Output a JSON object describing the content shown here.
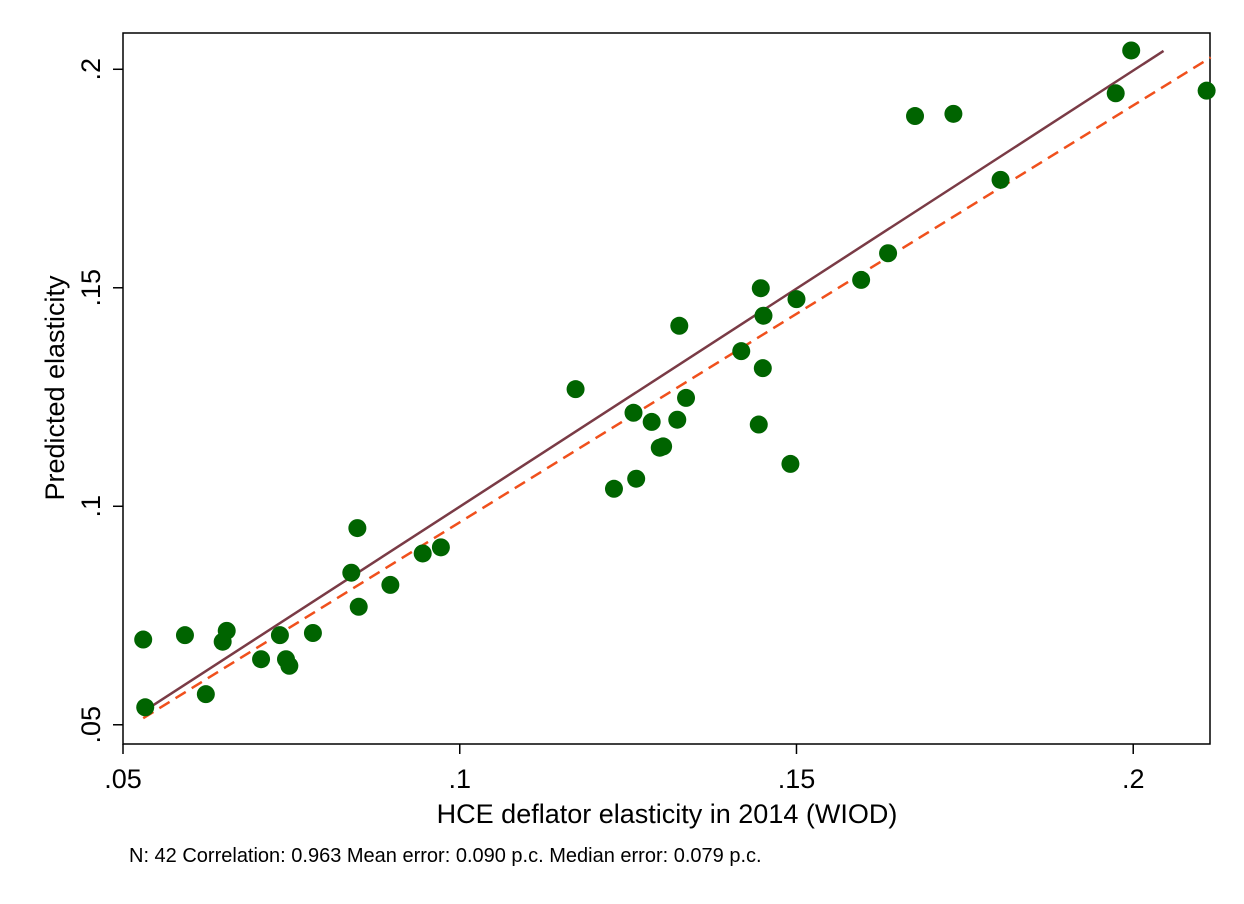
{
  "chart_data": {
    "type": "scatter",
    "title": "",
    "xlabel": "HCE deflator elasticity in 2014 (WIOD)",
    "ylabel": "Predicted elasticity",
    "xlim": [
      0.05,
      0.2114
    ],
    "ylim": [
      0.0456,
      0.2083
    ],
    "x_ticks": [
      0.05,
      0.1,
      0.15,
      0.2
    ],
    "x_tick_labels": [
      ".05",
      ".1",
      ".15",
      ".2"
    ],
    "y_ticks": [
      0.05,
      0.1,
      0.15,
      0.2
    ],
    "y_tick_labels": [
      ".05",
      ".1",
      ".15",
      ".2"
    ],
    "grid": false,
    "legend": "none",
    "note": "N: 42 Correlation: 0.963 Mean error: 0.090 p.c.  Median error: 0.079 p.c.",
    "colors": {
      "points": "#006400",
      "fit_line": "#7a3b46",
      "reference_line": "#f0501c"
    },
    "lines": [
      {
        "style": "solid",
        "x": [
          0.053,
          0.2045
        ],
        "y": [
          0.053,
          0.2042
        ]
      },
      {
        "style": "dashed",
        "x": [
          0.053,
          0.2115
        ],
        "y": [
          0.0515,
          0.2027
        ]
      }
    ],
    "series": [
      {
        "x": [
          0.053,
          0.0533,
          0.0592,
          0.0623,
          0.0648,
          0.0654,
          0.0705,
          0.0733,
          0.0742,
          0.0747,
          0.0782,
          0.0839,
          0.0848,
          0.085,
          0.0897,
          0.0945,
          0.0972,
          0.1172,
          0.1229,
          0.1258,
          0.1262,
          0.1285,
          0.1297,
          0.1302,
          0.1323,
          0.1326,
          0.1336,
          0.1418,
          0.1444,
          0.1447,
          0.145,
          0.1451,
          0.1491,
          0.15,
          0.1596,
          0.1636,
          0.1676,
          0.1733,
          0.1803,
          0.1974,
          0.1997,
          0.2109
        ],
        "y": [
          0.0695,
          0.054,
          0.0705,
          0.057,
          0.069,
          0.0715,
          0.065,
          0.0705,
          0.065,
          0.0635,
          0.071,
          0.0848,
          0.095,
          0.077,
          0.082,
          0.0892,
          0.0906,
          0.1268,
          0.104,
          0.1214,
          0.1063,
          0.1193,
          0.1134,
          0.1137,
          0.1198,
          0.1413,
          0.1248,
          0.1355,
          0.1187,
          0.1499,
          0.1316,
          0.1436,
          0.1097,
          0.1474,
          0.1518,
          0.1579,
          0.1893,
          0.1898,
          0.1747,
          0.1945,
          0.2043,
          0.1951
        ]
      }
    ]
  }
}
